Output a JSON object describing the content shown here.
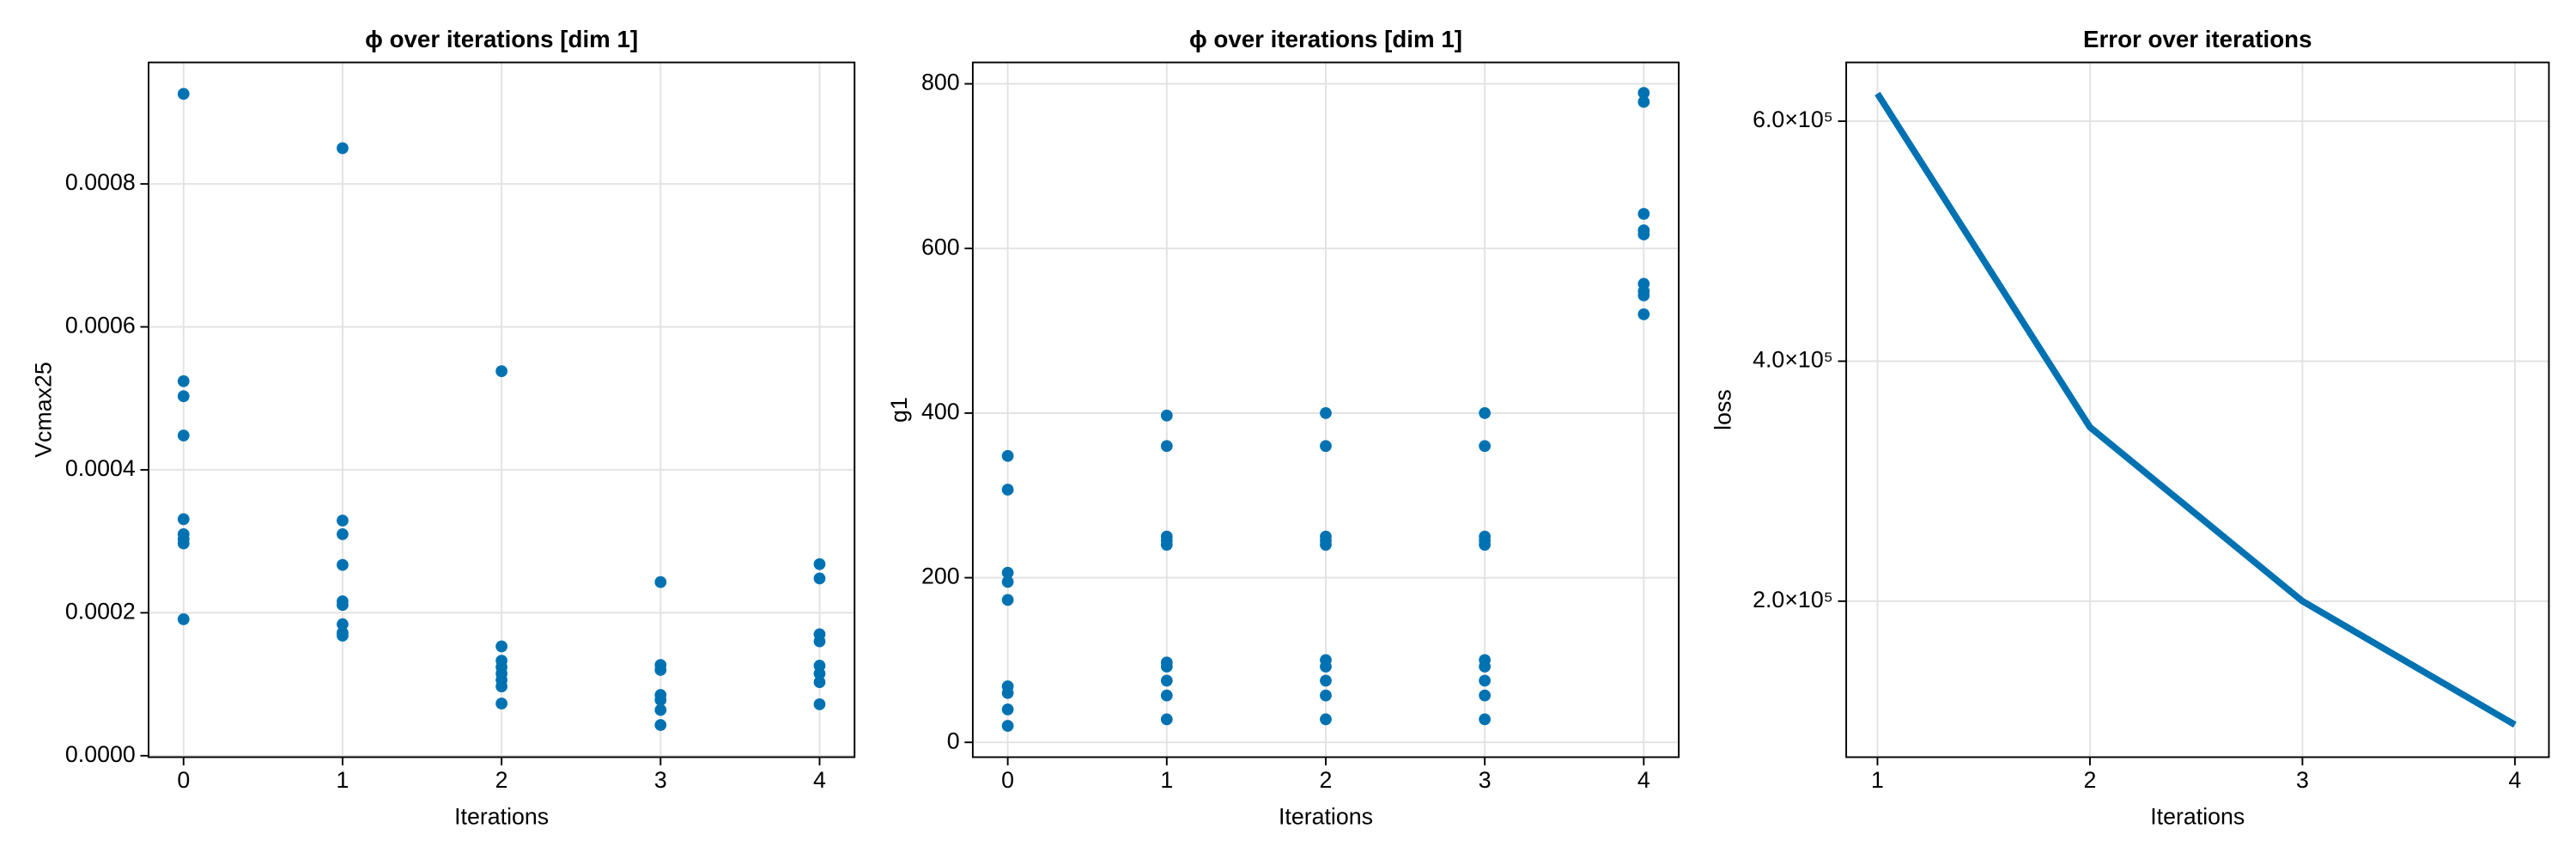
{
  "chart_data": [
    {
      "type": "scatter",
      "title": "ϕ over iterations [dim 1]",
      "xlabel": "Iterations",
      "ylabel": "Vcmax25",
      "color": "#0072b2",
      "grid": true,
      "x": [
        0,
        0,
        0,
        0,
        0,
        0,
        0,
        0,
        0,
        1,
        1,
        1,
        1,
        1,
        1,
        1,
        1,
        1,
        2,
        2,
        2,
        2,
        2,
        2,
        2,
        2,
        3,
        3,
        3,
        3,
        3,
        3,
        3,
        4,
        4,
        4,
        4,
        4,
        4,
        4,
        4
      ],
      "values": [
        0.000926,
        0.000524,
        0.000503,
        0.000448,
        0.000331,
        0.00031,
        0.000303,
        0.000297,
        0.000191,
        0.00085,
        0.000329,
        0.00031,
        0.000267,
        0.000216,
        0.000211,
        0.000184,
        0.000172,
        0.000168,
        0.000538,
        0.000153,
        0.000133,
        0.000124,
        0.000115,
        0.000106,
        9.7e-05,
        7.3e-05,
        0.000243,
        0.000127,
        0.00012,
        8.5e-05,
        7.8e-05,
        6.4e-05,
        4.3e-05,
        0.000268,
        0.000248,
        0.00017,
        0.00016,
        0.000126,
        0.000115,
        0.000103,
        7.2e-05
      ],
      "xlim": [
        -0.22,
        4.22
      ],
      "ylim": [
        -2e-06,
        0.00097
      ],
      "xticks": [
        0,
        1,
        2,
        3,
        4
      ],
      "yticks": [
        {
          "value": 0,
          "label": "0.0000"
        },
        0.0002,
        0.0004,
        0.0006,
        0.0008
      ]
    },
    {
      "type": "scatter",
      "title": "ϕ over iterations [dim 1]",
      "xlabel": "Iterations",
      "ylabel": "g1",
      "color": "#0072b2",
      "grid": true,
      "x": [
        0,
        0,
        0,
        0,
        0,
        0,
        0,
        0,
        0,
        1,
        1,
        1,
        1,
        1,
        1,
        1,
        1,
        1,
        1,
        2,
        2,
        2,
        2,
        2,
        2,
        2,
        2,
        2,
        2,
        3,
        3,
        3,
        3,
        3,
        3,
        3,
        3,
        3,
        3,
        4,
        4,
        4,
        4,
        4,
        4,
        4,
        4,
        4
      ],
      "values": [
        348,
        307,
        206,
        195,
        173,
        68,
        60,
        40,
        20,
        397,
        360,
        250,
        245,
        240,
        97,
        92,
        75,
        57,
        28,
        400,
        360,
        250,
        245,
        240,
        100,
        92,
        75,
        57,
        28,
        400,
        360,
        250,
        245,
        240,
        100,
        92,
        75,
        57,
        28,
        789,
        778,
        642,
        622,
        617,
        557,
        548,
        543,
        520
      ],
      "xlim": [
        -0.22,
        4.22
      ],
      "ylim": [
        -18,
        826
      ],
      "xticks": [
        0,
        1,
        2,
        3,
        4
      ],
      "yticks": [
        0,
        200,
        400,
        600,
        800
      ]
    },
    {
      "type": "line",
      "title": "Error over iterations",
      "xlabel": "Iterations",
      "ylabel": "loss",
      "color": "#0072b2",
      "grid": true,
      "x": [
        1,
        2,
        3,
        4
      ],
      "values": [
        623000,
        345000,
        200000,
        97000
      ],
      "xlim": [
        0.853,
        4.16
      ],
      "ylim": [
        70000,
        649000
      ],
      "xticks": [
        1,
        2,
        3,
        4
      ],
      "yticks": [
        {
          "value": 200000,
          "label": "2.0×10⁵"
        },
        {
          "value": 400000,
          "label": "4.0×10⁵"
        },
        {
          "value": 600000,
          "label": "6.0×10⁵"
        }
      ]
    }
  ]
}
